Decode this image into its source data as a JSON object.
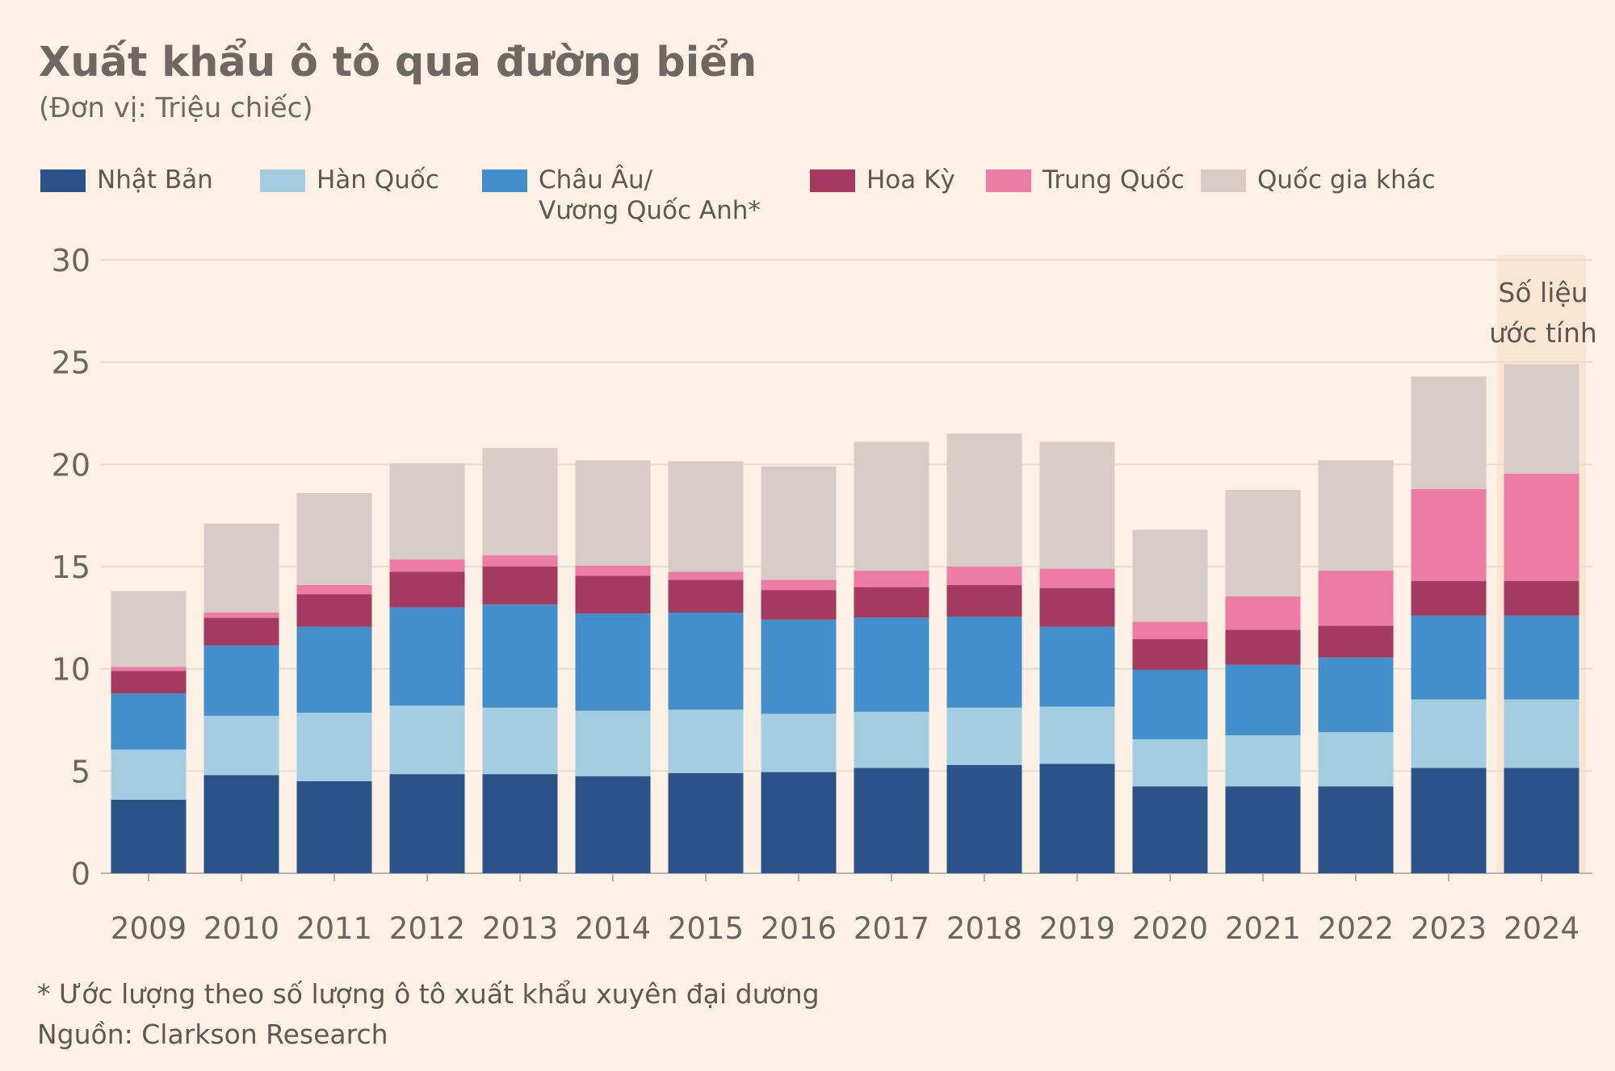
{
  "chart_data": {
    "type": "bar",
    "stacked": true,
    "title": "Xuất khẩu ô tô qua đường biển",
    "subtitle": "(Đơn vị: Triệu chiếc)",
    "categories": [
      "2009",
      "2010",
      "2011",
      "2012",
      "2013",
      "2014",
      "2015",
      "2016",
      "2017",
      "2018",
      "2019",
      "2020",
      "2021",
      "2022",
      "2023",
      "2024"
    ],
    "series": [
      {
        "name": "Nhật Bản",
        "color": "#2c5389",
        "values": [
          3.6,
          4.8,
          4.5,
          4.85,
          4.85,
          4.75,
          4.9,
          4.95,
          5.15,
          5.3,
          5.35,
          4.25,
          4.25,
          4.25,
          5.15,
          5.15
        ]
      },
      {
        "name": "Hàn Quốc",
        "color": "#a4cde2",
        "values": [
          2.45,
          2.9,
          3.35,
          3.35,
          3.25,
          3.2,
          3.1,
          2.85,
          2.75,
          2.8,
          2.8,
          2.3,
          2.5,
          2.65,
          3.35,
          3.35
        ]
      },
      {
        "name": "Châu Âu/",
        "name_line2": "Vương Quốc Anh*",
        "color": "#428fcb",
        "values": [
          2.75,
          3.45,
          4.2,
          4.8,
          5.05,
          4.75,
          4.75,
          4.6,
          4.6,
          4.45,
          3.9,
          3.4,
          3.45,
          3.65,
          4.1,
          4.1
        ]
      },
      {
        "name": "Hoa Kỳ",
        "color": "#a53a60",
        "values": [
          1.1,
          1.35,
          1.6,
          1.75,
          1.85,
          1.85,
          1.6,
          1.45,
          1.5,
          1.55,
          1.9,
          1.5,
          1.7,
          1.55,
          1.7,
          1.7
        ]
      },
      {
        "name": "Trung Quốc",
        "color": "#ec7ca4",
        "values": [
          0.2,
          0.25,
          0.45,
          0.6,
          0.55,
          0.5,
          0.4,
          0.5,
          0.8,
          0.9,
          0.95,
          0.85,
          1.65,
          2.7,
          4.5,
          5.25
        ]
      },
      {
        "name": "Quốc gia khác",
        "color": "#d8cdc6",
        "values": [
          3.7,
          4.35,
          4.5,
          4.7,
          5.25,
          5.15,
          5.4,
          5.55,
          6.3,
          6.5,
          6.2,
          4.5,
          5.2,
          5.4,
          5.5,
          5.35
        ]
      }
    ],
    "ylim": [
      0,
      30
    ],
    "yticks": [
      0,
      5,
      10,
      15,
      20,
      25,
      30
    ],
    "grid": true,
    "legend": "top",
    "annotation": {
      "line1": "Số liệu",
      "line2": "ước tính"
    },
    "footnote": "*  Ước lượng theo số lượng ô tô xuất khẩu xuyên đại dương",
    "source": "Nguồn: Clarkson Research"
  }
}
